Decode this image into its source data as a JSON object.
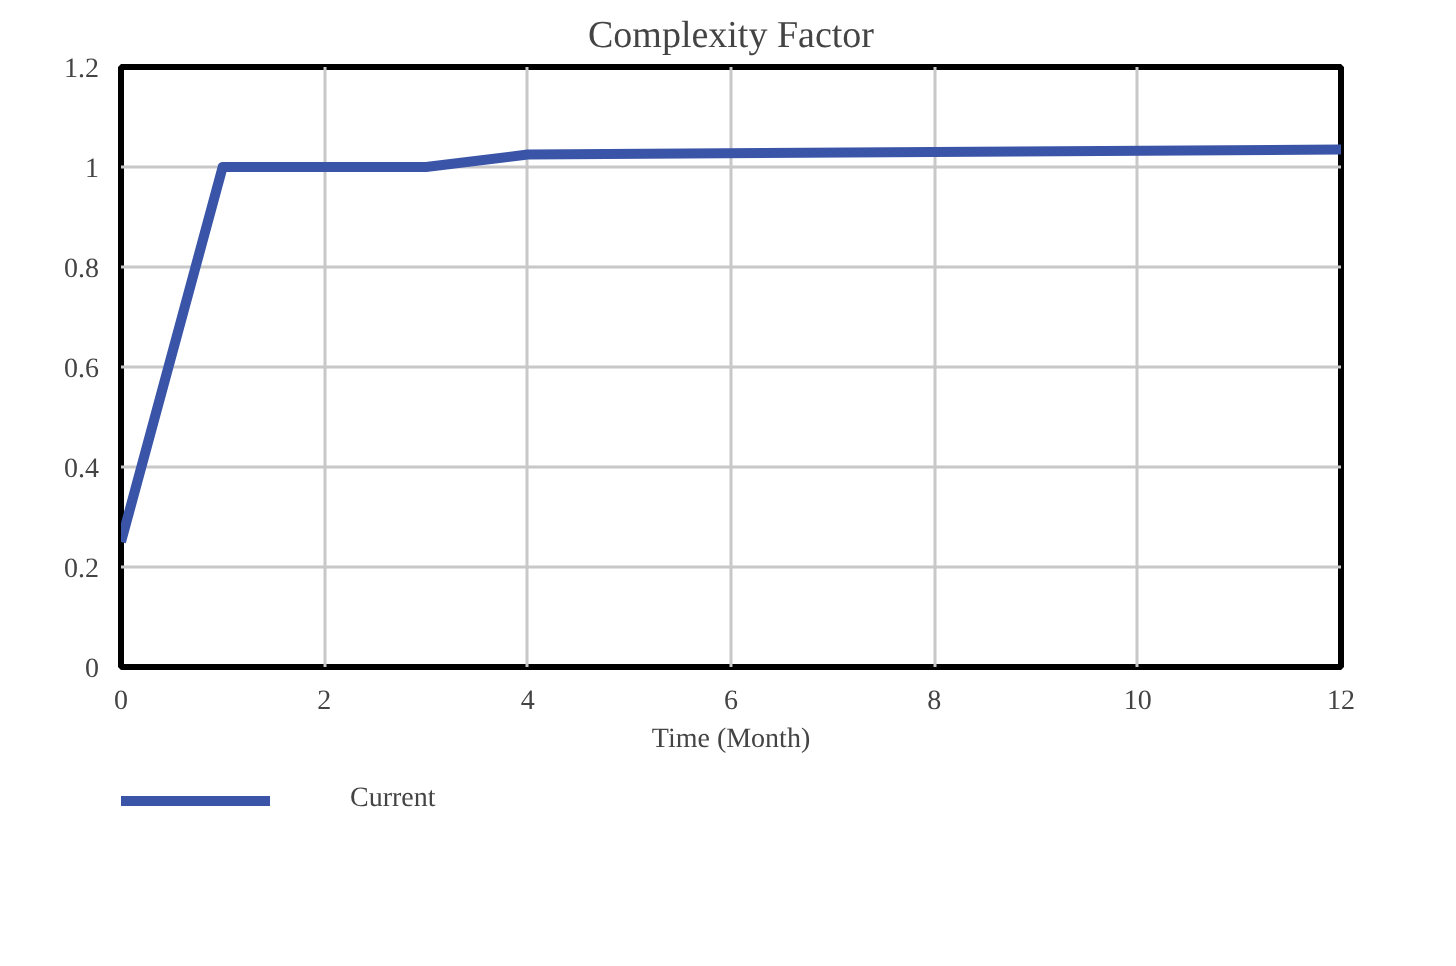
{
  "chart_data": {
    "type": "line",
    "title": "Complexity Factor",
    "xlabel": "Time (Month)",
    "x": [
      0,
      1,
      3,
      4,
      12
    ],
    "series": [
      {
        "name": "Current",
        "color": "#3a55a8",
        "values": [
          0.25,
          1.0,
          1.0,
          1.025,
          1.035
        ]
      }
    ],
    "xlim": [
      0,
      12
    ],
    "xticks": [
      0,
      2,
      4,
      6,
      8,
      10,
      12
    ],
    "ylim": [
      0,
      1.2
    ],
    "yticks": [
      0,
      0.2,
      0.4,
      0.6,
      0.8,
      1,
      1.2
    ],
    "grid": true,
    "legend": "bottom left",
    "marker": "none",
    "line_style": "solid"
  }
}
